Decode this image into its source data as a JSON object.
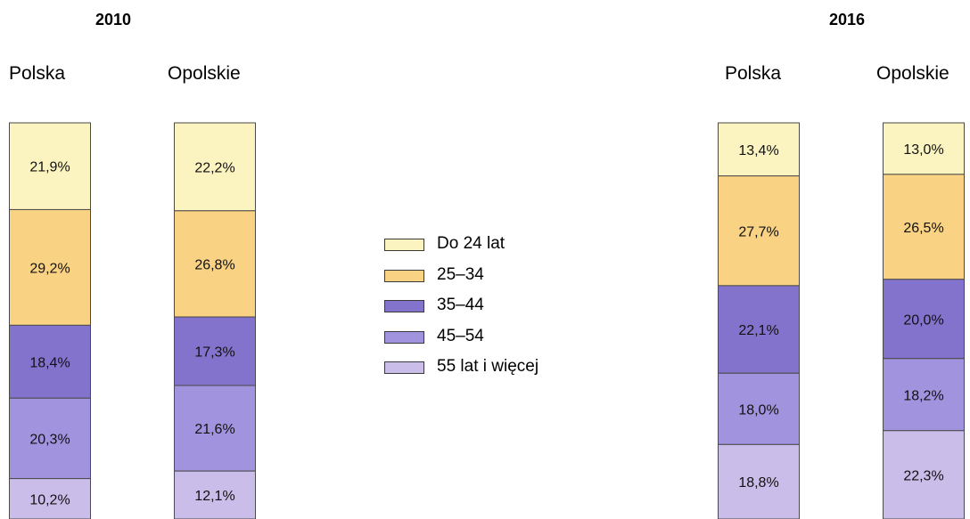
{
  "chart_data": {
    "type": "stacked-bar",
    "groups": [
      {
        "year": "2010",
        "bars": [
          {
            "region": "Polska",
            "values": [
              21.9,
              29.2,
              18.4,
              20.3,
              10.2
            ],
            "labels": [
              "21,9%",
              "29,2%",
              "18,4%",
              "20,3%",
              "10,2%"
            ]
          },
          {
            "region": "Opolskie",
            "values": [
              22.2,
              26.8,
              17.3,
              21.6,
              12.1
            ],
            "labels": [
              "22,2%",
              "26,8%",
              "17,3%",
              "21,6%",
              "12,1%"
            ]
          }
        ]
      },
      {
        "year": "2016",
        "bars": [
          {
            "region": "Polska",
            "values": [
              13.4,
              27.7,
              22.1,
              18.0,
              18.8
            ],
            "labels": [
              "13,4%",
              "27,7%",
              "22,1%",
              "18,0%",
              "18,8%"
            ]
          },
          {
            "region": "Opolskie",
            "values": [
              13.0,
              26.5,
              20.0,
              18.2,
              22.3
            ],
            "labels": [
              "13,0%",
              "26,5%",
              "20,0%",
              "18,2%",
              "22,3%"
            ]
          }
        ]
      }
    ],
    "series": [
      {
        "name": "Do 24 lat",
        "color": "#fcf4c0"
      },
      {
        "name": "25–34",
        "color": "#f9d283"
      },
      {
        "name": "35–44",
        "color": "#8473cc"
      },
      {
        "name": "45–54",
        "color": "#a193de"
      },
      {
        "name": "55 lat i więcej",
        "color": "#cbbde9"
      }
    ]
  }
}
